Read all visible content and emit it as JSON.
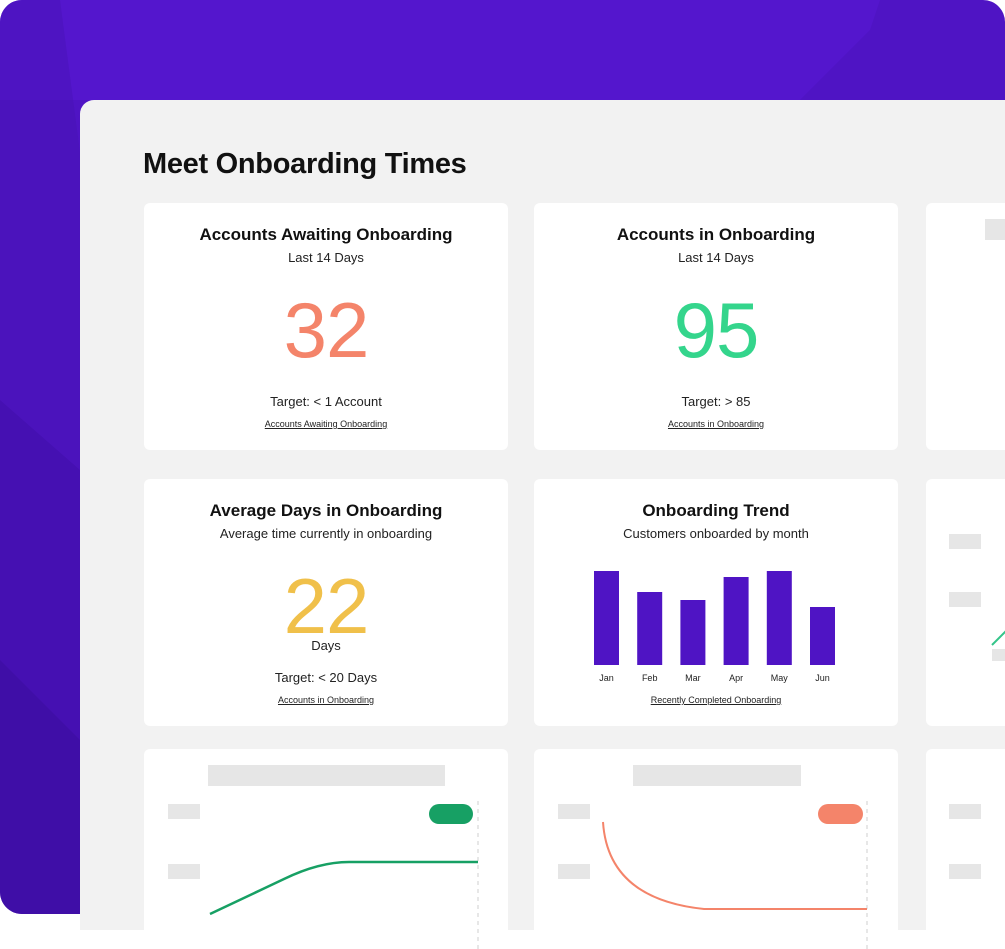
{
  "colors": {
    "background_purple": "#4f14c4",
    "bar_purple": "#4f14c4",
    "salmon": "#f4846a",
    "green": "#34d58c",
    "yellow": "#f0c04a",
    "dark_green": "#17a064"
  },
  "page": {
    "title": "Meet Onboarding Times"
  },
  "cards": {
    "awaiting": {
      "title": "Accounts Awaiting Onboarding",
      "subtitle": "Last 14 Days",
      "value": "32",
      "target": "Target: < 1 Account",
      "link": "Accounts Awaiting Onboarding"
    },
    "in_onboarding": {
      "title": "Accounts in Onboarding",
      "subtitle": "Last 14 Days",
      "value": "95",
      "target": "Target: > 85",
      "link": "Accounts in Onboarding"
    },
    "avg_days": {
      "title": "Average Days in Onboarding",
      "subtitle": "Average time currently in onboarding",
      "value": "22",
      "unit": "Days",
      "target": "Target: < 20 Days",
      "link": "Accounts in Onboarding"
    },
    "trend": {
      "title": "Onboarding Trend",
      "subtitle": "Customers onboarded by month",
      "link": "Recently Completed Onboarding"
    }
  },
  "chart_data": {
    "type": "bar",
    "categories": [
      "Jan",
      "Feb",
      "Mar",
      "Apr",
      "May",
      "Jun"
    ],
    "values": [
      94,
      73,
      65,
      88,
      94,
      58
    ],
    "ylim": [
      0,
      100
    ],
    "grid": false
  }
}
